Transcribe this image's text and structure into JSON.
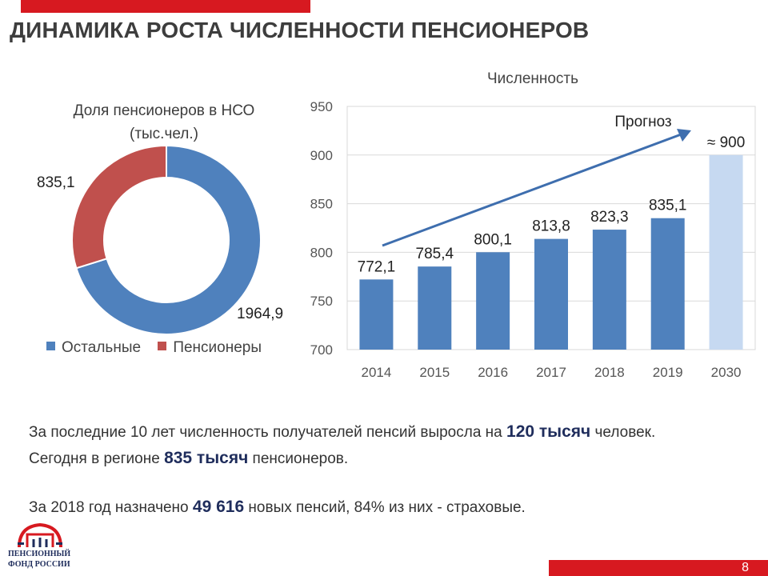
{
  "header": {
    "title": "ДИНАМИКА РОСТА ЧИСЛЕННОСТИ ПЕНСИОНЕРОВ"
  },
  "colors": {
    "accent_red": "#d71920",
    "bar_blue": "#4f81bd",
    "forecast_blue": "#c6d9f1",
    "pension_red": "#c0504d",
    "arrow": "#3e6eae"
  },
  "chart_data": [
    {
      "type": "pie",
      "variant": "donut",
      "title": "Доля пенсионеров в НСО",
      "subtitle": "(тыс.чел.)",
      "categories": [
        "Остальные",
        "Пенсионеры"
      ],
      "values": [
        1964.9,
        835.1
      ],
      "value_labels": [
        "1964,9",
        "835,1"
      ],
      "legend_position": "bottom"
    },
    {
      "type": "bar",
      "title": "Численность",
      "categories": [
        "2014",
        "2015",
        "2016",
        "2017",
        "2018",
        "2019",
        "2030"
      ],
      "values": [
        772.1,
        785.4,
        800.1,
        813.8,
        823.3,
        835.1,
        900
      ],
      "value_labels": [
        "772,1",
        "785,4",
        "800,1",
        "813,8",
        "823,3",
        "835,1",
        "≈ 900"
      ],
      "forecast_category": "2030",
      "ylim": [
        700,
        950
      ],
      "yticks": [
        "700",
        "750",
        "800",
        "850",
        "900",
        "950"
      ],
      "grid": true,
      "annotation": "Прогноз"
    }
  ],
  "body_text": {
    "line1_pre": "За последние 10 лет численность  получателей пенсий выросла на ",
    "line1_bold": "120 тысяч",
    "line1_post": " человек.",
    "line2_pre": "Сегодня в регионе ",
    "line2_bold": "835 тысяч",
    "line2_post": " пенсионеров.",
    "line3_pre": "За 2018 год назначено ",
    "line3_bold": "49 616",
    "line3_post": " новых пенсий, 84% из них - страховые."
  },
  "footer": {
    "logo_text_line1": "ПЕНСИОННЫЙ",
    "logo_text_line2": "ФОНД РОССИИ",
    "page_number": "8"
  }
}
